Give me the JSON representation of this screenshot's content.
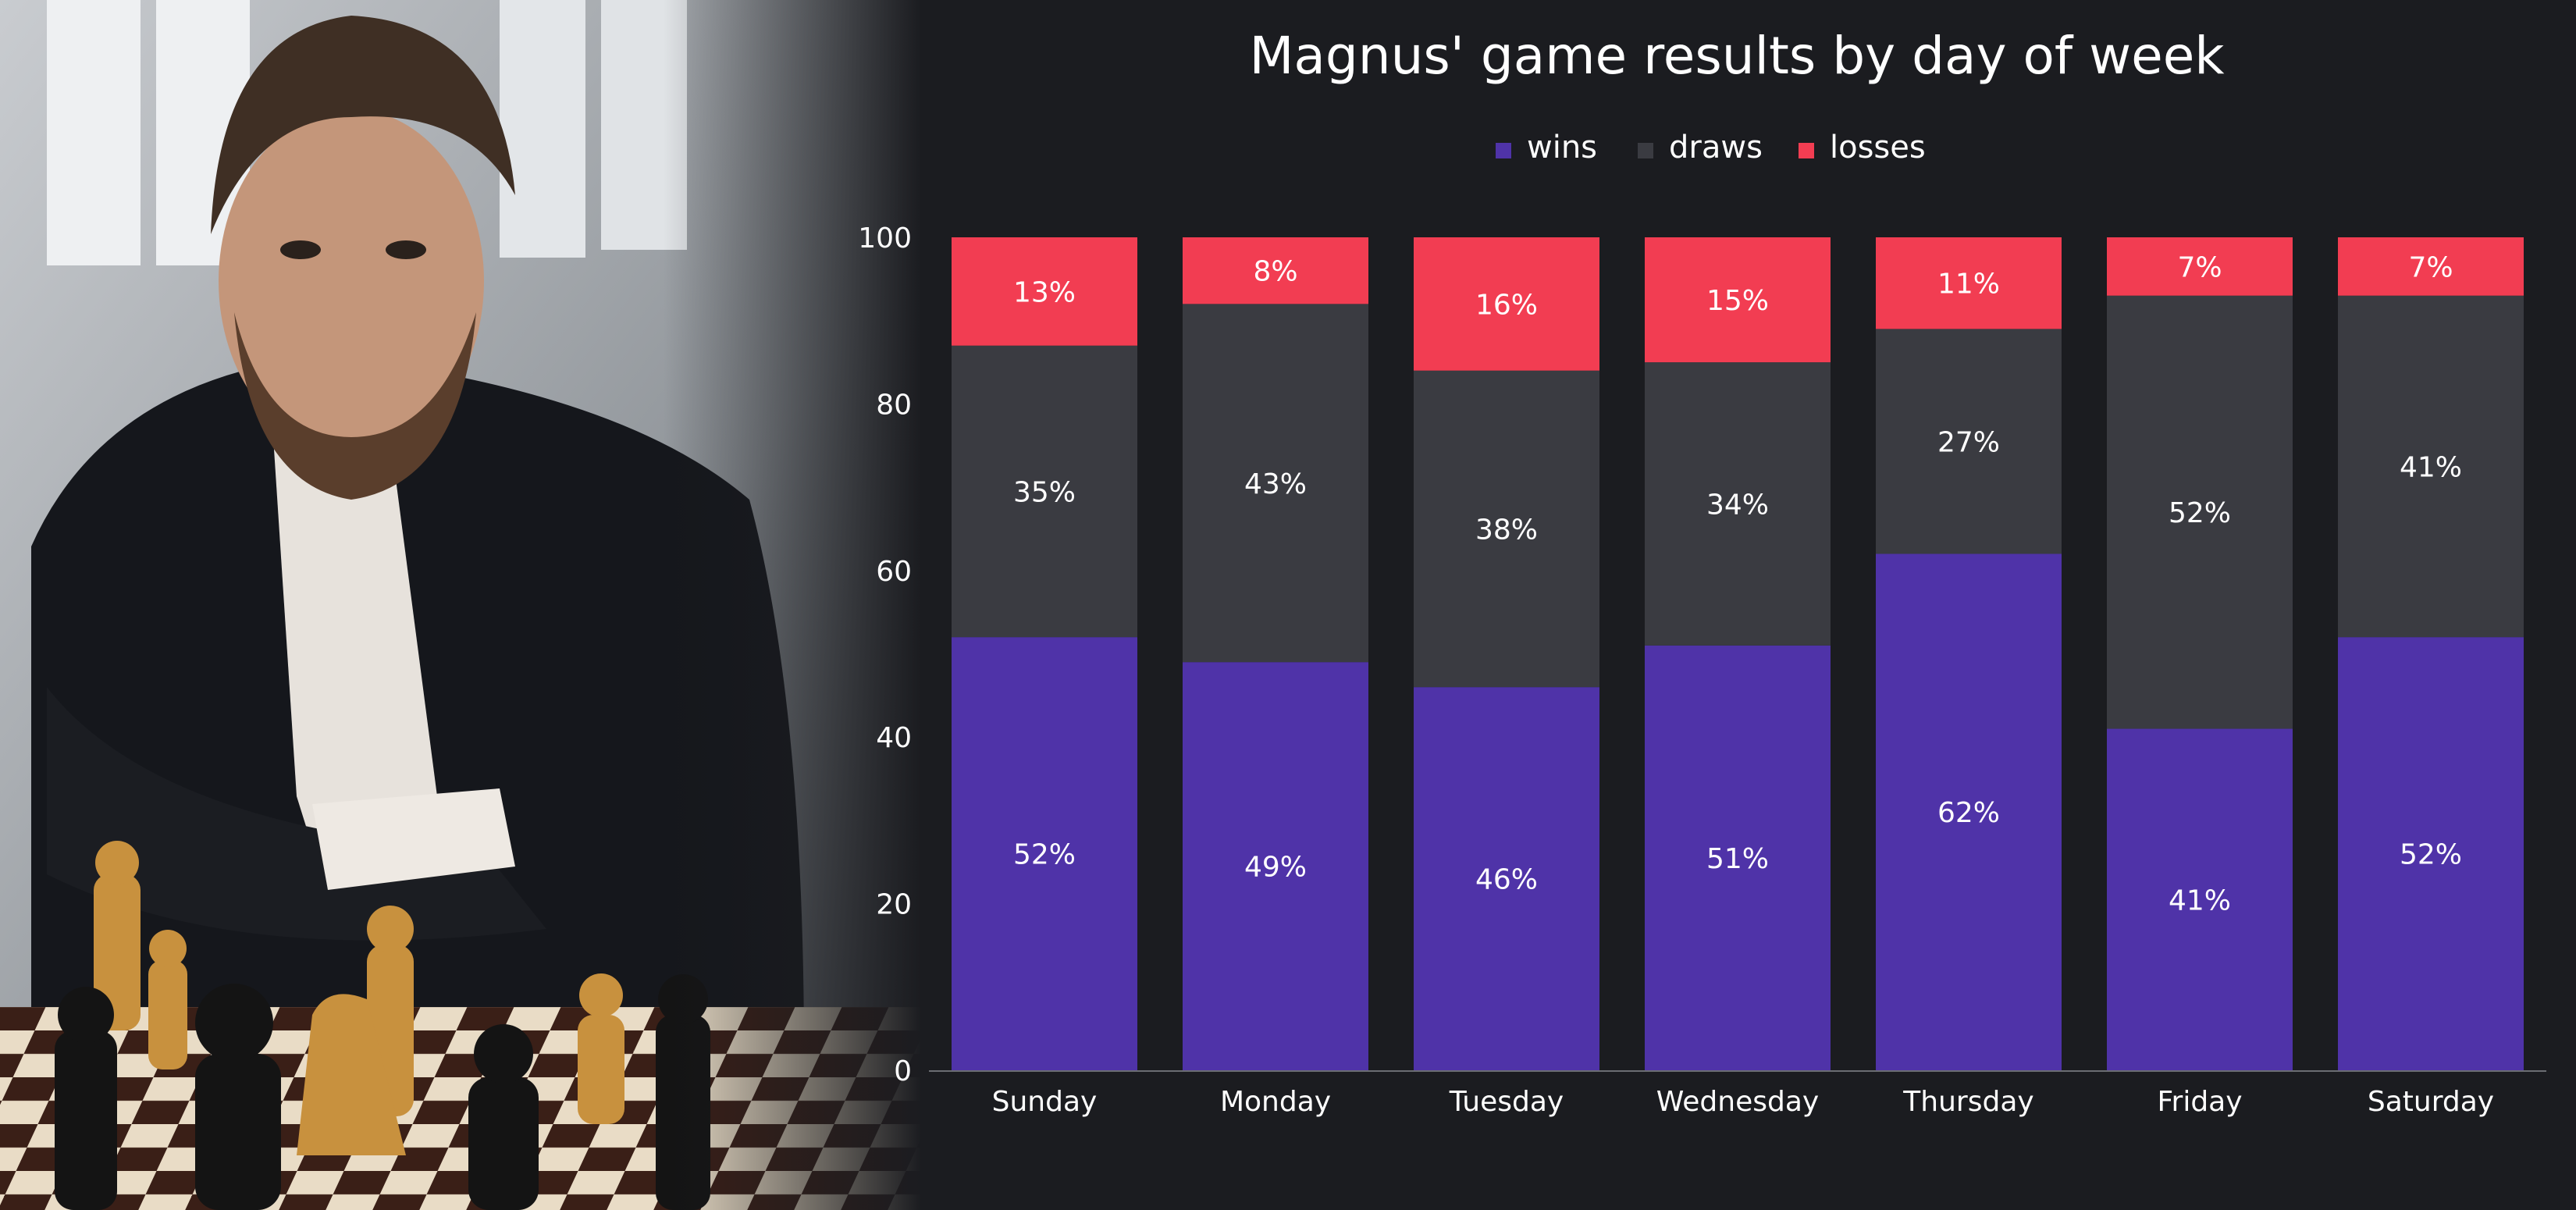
{
  "chart_data": {
    "type": "bar",
    "stacked": true,
    "title": "Magnus' game results by day of week",
    "categories": [
      "Sunday",
      "Monday",
      "Tuesday",
      "Wednesday",
      "Thursday",
      "Friday",
      "Saturday"
    ],
    "series": [
      {
        "name": "wins",
        "color": "#4f33a8",
        "values": [
          52,
          49,
          46,
          51,
          62,
          41,
          52
        ],
        "labels": [
          "52%",
          "49%",
          "46%",
          "51%",
          "62%",
          "41%",
          "52%"
        ]
      },
      {
        "name": "draws",
        "color": "#3a3b41",
        "values": [
          35,
          43,
          38,
          34,
          27,
          52,
          41
        ],
        "labels": [
          "35%",
          "43%",
          "38%",
          "34%",
          "27%",
          "52%",
          "41%"
        ]
      },
      {
        "name": "losses",
        "color": "#f23d52",
        "values": [
          13,
          8,
          16,
          15,
          11,
          7,
          7
        ],
        "labels": [
          "13%",
          "8%",
          "16%",
          "15%",
          "11%",
          "7%",
          "7%"
        ]
      }
    ],
    "ylim": [
      0,
      100
    ],
    "yticks": [
      "0",
      "20",
      "40",
      "60",
      "80",
      "100"
    ],
    "grid": false,
    "legend": "top-center"
  },
  "colors": {
    "background": "#1b1c20"
  }
}
